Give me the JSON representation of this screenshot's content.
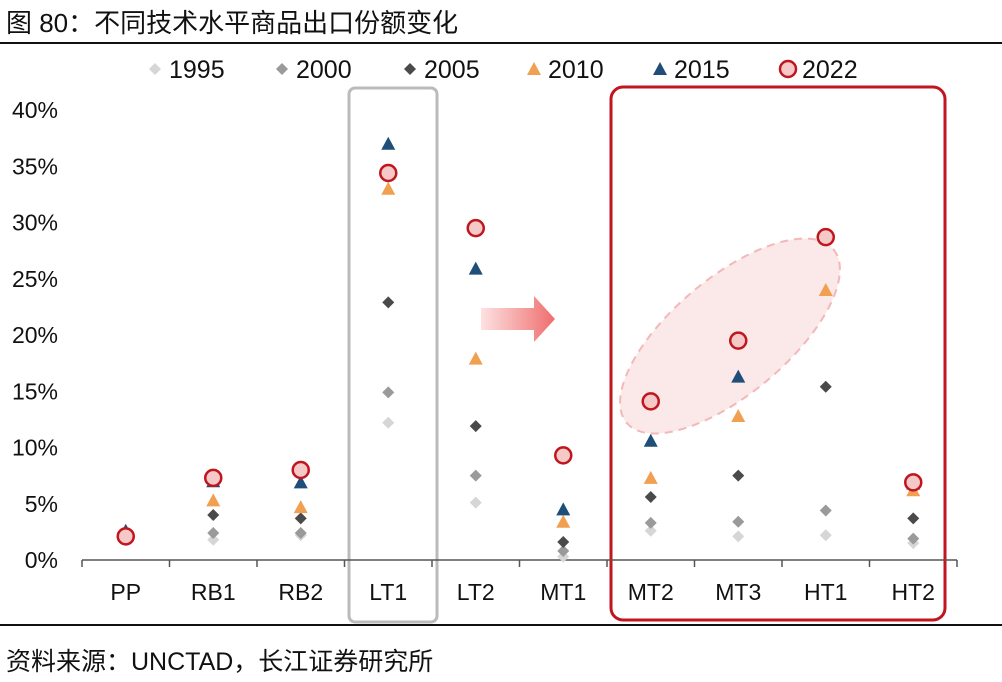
{
  "figure": {
    "title": "图 80：不同技术水平商品出口份额变化",
    "source": "资料来源：UNCTAD，长江证券研究所"
  },
  "colors": {
    "1995": "#d6d6d6",
    "2000": "#9a9a9a",
    "2005": "#4a4a4a",
    "2010": "#f0a050",
    "2015": "#1f4e79",
    "2022": "#f6c9c9",
    "2022_outline": "#c0161f",
    "highlight_box_gray": "#bbbbbb",
    "highlight_box_red": "#c0161f",
    "arrow": "#f07a7a",
    "ellipse": "#f3b8b8"
  },
  "chart_data": {
    "type": "scatter",
    "title": "",
    "xlabel": "",
    "ylabel": "",
    "categories": [
      "PP",
      "RB1",
      "RB2",
      "LT1",
      "LT2",
      "MT1",
      "MT2",
      "MT3",
      "HT1",
      "HT2"
    ],
    "ylim": [
      0,
      40
    ],
    "yticks": [
      "0%",
      "5%",
      "10%",
      "15%",
      "20%",
      "25%",
      "30%",
      "35%",
      "40%"
    ],
    "legend_position": "top",
    "grid": false,
    "series": [
      {
        "name": "1995",
        "marker": "diamond",
        "values": [
          2.0,
          1.8,
          2.2,
          12.2,
          5.1,
          0.3,
          2.6,
          2.1,
          2.2,
          1.5
        ]
      },
      {
        "name": "2000",
        "marker": "diamond",
        "values": [
          2.1,
          2.4,
          2.4,
          14.9,
          7.5,
          0.8,
          3.3,
          3.4,
          4.4,
          1.9
        ]
      },
      {
        "name": "2005",
        "marker": "diamond",
        "values": [
          2.2,
          4.0,
          3.7,
          22.9,
          11.9,
          1.6,
          5.6,
          7.5,
          15.4,
          3.7
        ]
      },
      {
        "name": "2010",
        "marker": "triangle",
        "values": [
          2.4,
          5.3,
          4.7,
          33.0,
          17.9,
          3.4,
          7.3,
          12.8,
          24.0,
          6.2
        ]
      },
      {
        "name": "2015",
        "marker": "triangle",
        "values": [
          2.6,
          7.0,
          6.9,
          37.0,
          25.9,
          4.5,
          10.6,
          16.3,
          28.8,
          6.8
        ]
      },
      {
        "name": "2022",
        "marker": "circle",
        "values": [
          2.1,
          7.3,
          8.0,
          34.4,
          29.5,
          9.3,
          14.1,
          19.5,
          28.7,
          6.9
        ]
      }
    ]
  }
}
